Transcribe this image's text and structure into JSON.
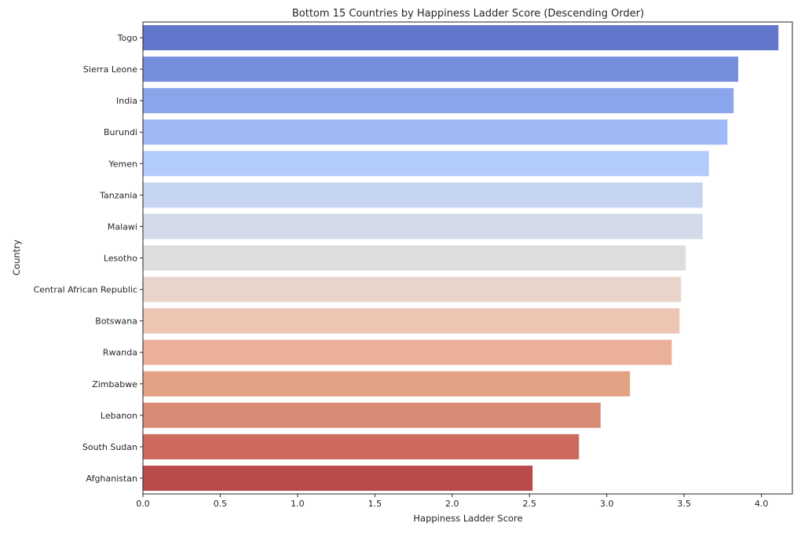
{
  "chart_data": {
    "type": "bar",
    "orientation": "horizontal",
    "title": "Bottom 15 Countries by Happiness Ladder Score (Descending Order)",
    "xlabel": "Happiness Ladder Score",
    "ylabel": "Country",
    "xlim": [
      0,
      4.2
    ],
    "xticks": [
      "0.0",
      "0.5",
      "1.0",
      "1.5",
      "2.0",
      "2.5",
      "3.0",
      "3.5",
      "4.0"
    ],
    "grid": false,
    "categories": [
      "Togo",
      "Sierra Leone",
      "India",
      "Burundi",
      "Yemen",
      "Tanzania",
      "Malawi",
      "Lesotho",
      "Central African Republic",
      "Botswana",
      "Rwanda",
      "Zimbabwe",
      "Lebanon",
      "South Sudan",
      "Afghanistan"
    ],
    "values": [
      4.11,
      3.85,
      3.82,
      3.78,
      3.66,
      3.62,
      3.62,
      3.51,
      3.48,
      3.47,
      3.42,
      3.15,
      2.96,
      2.82,
      2.52
    ],
    "colors": [
      "#6276CB",
      "#758FDD",
      "#8AA5EC",
      "#9FB9F6",
      "#B3CBFA",
      "#C5D5F1",
      "#D2DAE9",
      "#DDDDDD",
      "#E8D4CA",
      "#EDC5B2",
      "#EAB09A",
      "#E4A285",
      "#D98A75",
      "#CC6A5D",
      "#B94B4A"
    ]
  }
}
